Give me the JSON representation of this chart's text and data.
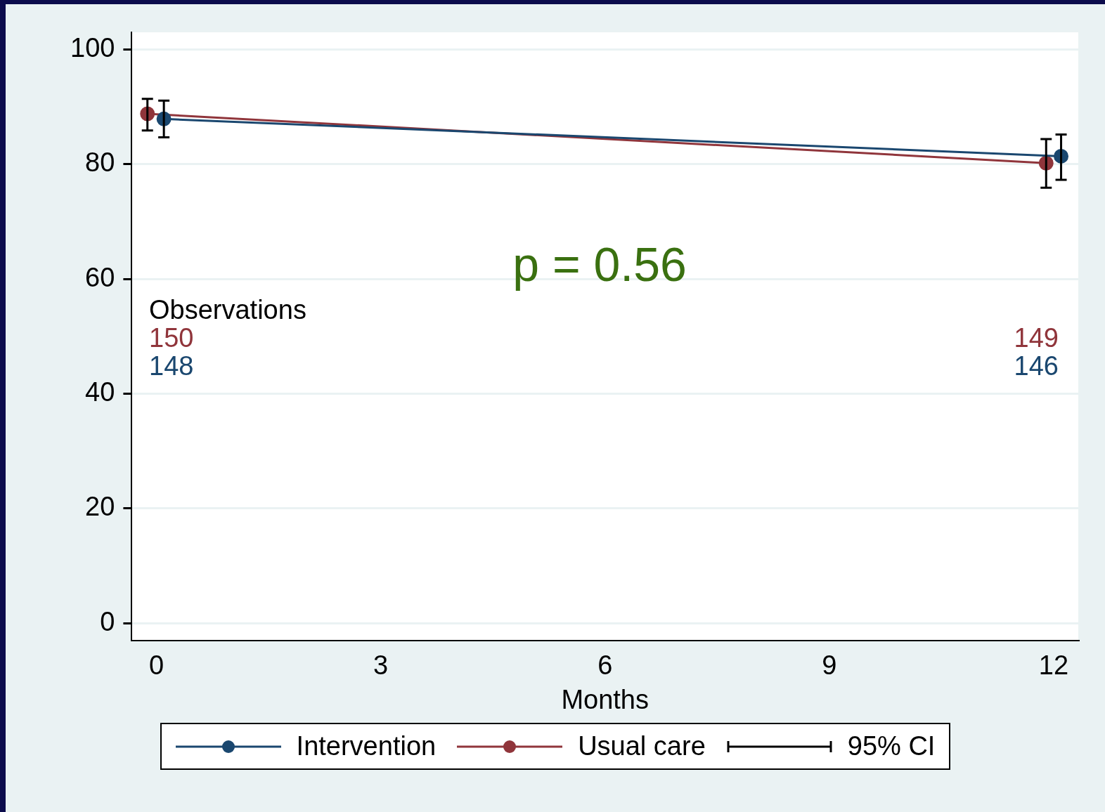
{
  "chart_data": {
    "type": "line",
    "xlabel": "Months",
    "xlim": [
      -0.33,
      12.33
    ],
    "xticks": [
      0,
      3,
      6,
      9,
      12
    ],
    "ylim": [
      -3,
      103
    ],
    "yticks": [
      0,
      20,
      40,
      60,
      80,
      100
    ],
    "grid": "y",
    "legend": "bottom",
    "marker": "circle",
    "line_style": "solid",
    "series": [
      {
        "name": "Intervention",
        "color": "#1a476f",
        "x": [
          0.1,
          12.1
        ],
        "values": [
          87.9,
          81.4
        ],
        "errors": [
          [
            84.7,
            91.1
          ],
          [
            77.3,
            85.2
          ]
        ]
      },
      {
        "name": "Usual care",
        "color": "#90353b",
        "x": [
          -0.12,
          11.9
        ],
        "values": [
          88.8,
          80.2
        ],
        "errors": [
          [
            85.9,
            91.4
          ],
          [
            75.9,
            84.4
          ]
        ]
      }
    ],
    "annotations": [
      "p = 0.56",
      "Observations",
      "150",
      "148",
      "149",
      "146",
      "95% CI"
    ]
  }
}
